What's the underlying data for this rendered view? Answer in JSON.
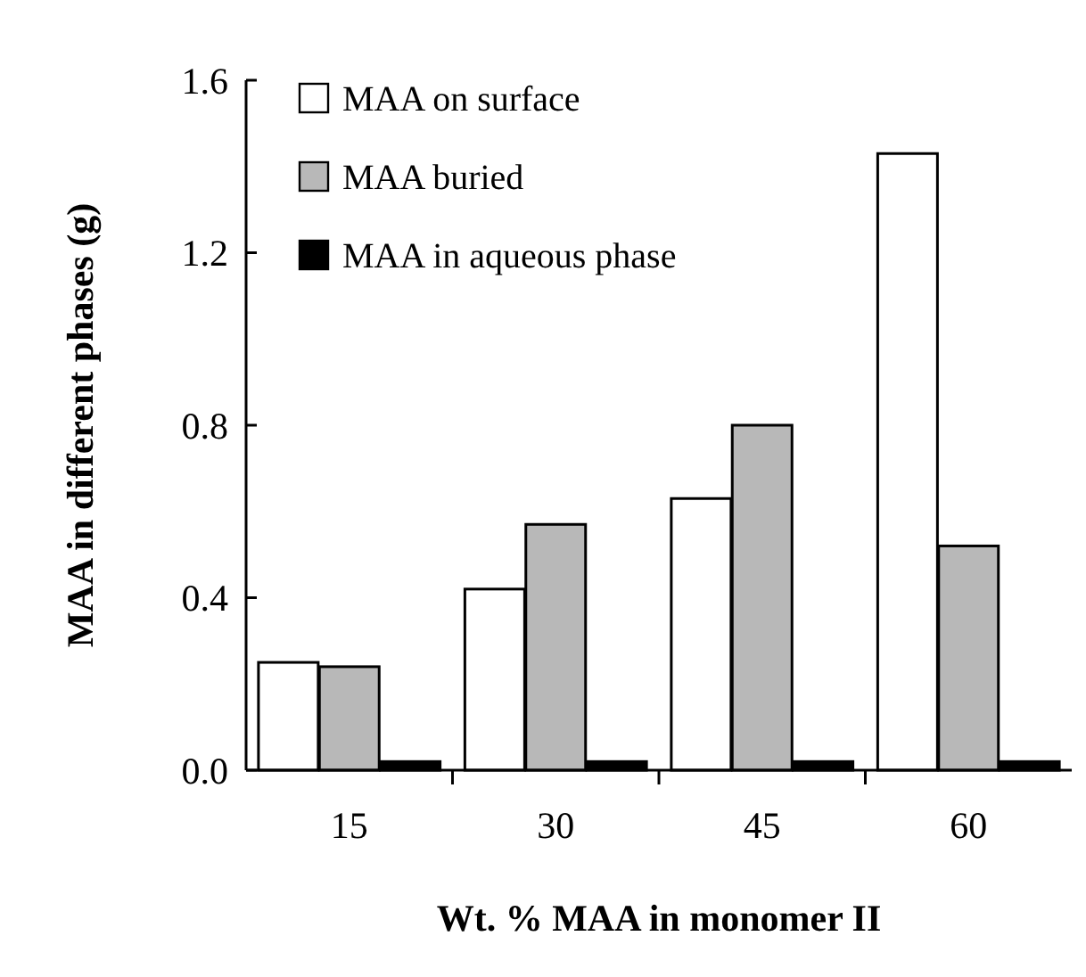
{
  "chart_data": {
    "type": "bar",
    "xlabel": "Wt. % MAA in monomer II",
    "ylabel": "MAA in different phases (g)",
    "categories": [
      "15",
      "30",
      "45",
      "60"
    ],
    "series": [
      {
        "name": "MAA on surface",
        "color": "#ffffff",
        "values": [
          0.25,
          0.42,
          0.63,
          1.43
        ]
      },
      {
        "name": "MAA buried",
        "color": "#b8b8b8",
        "values": [
          0.24,
          0.57,
          0.8,
          0.52
        ]
      },
      {
        "name": "MAA in aqueous phase",
        "color": "#000000",
        "values": [
          0.02,
          0.02,
          0.02,
          0.02
        ]
      }
    ],
    "ylim": [
      0,
      1.6
    ],
    "yticks": [
      {
        "value": 0,
        "label": "0.0"
      },
      0.4,
      0.8,
      1.2,
      1.6
    ],
    "legend": "top left",
    "grid": false
  }
}
